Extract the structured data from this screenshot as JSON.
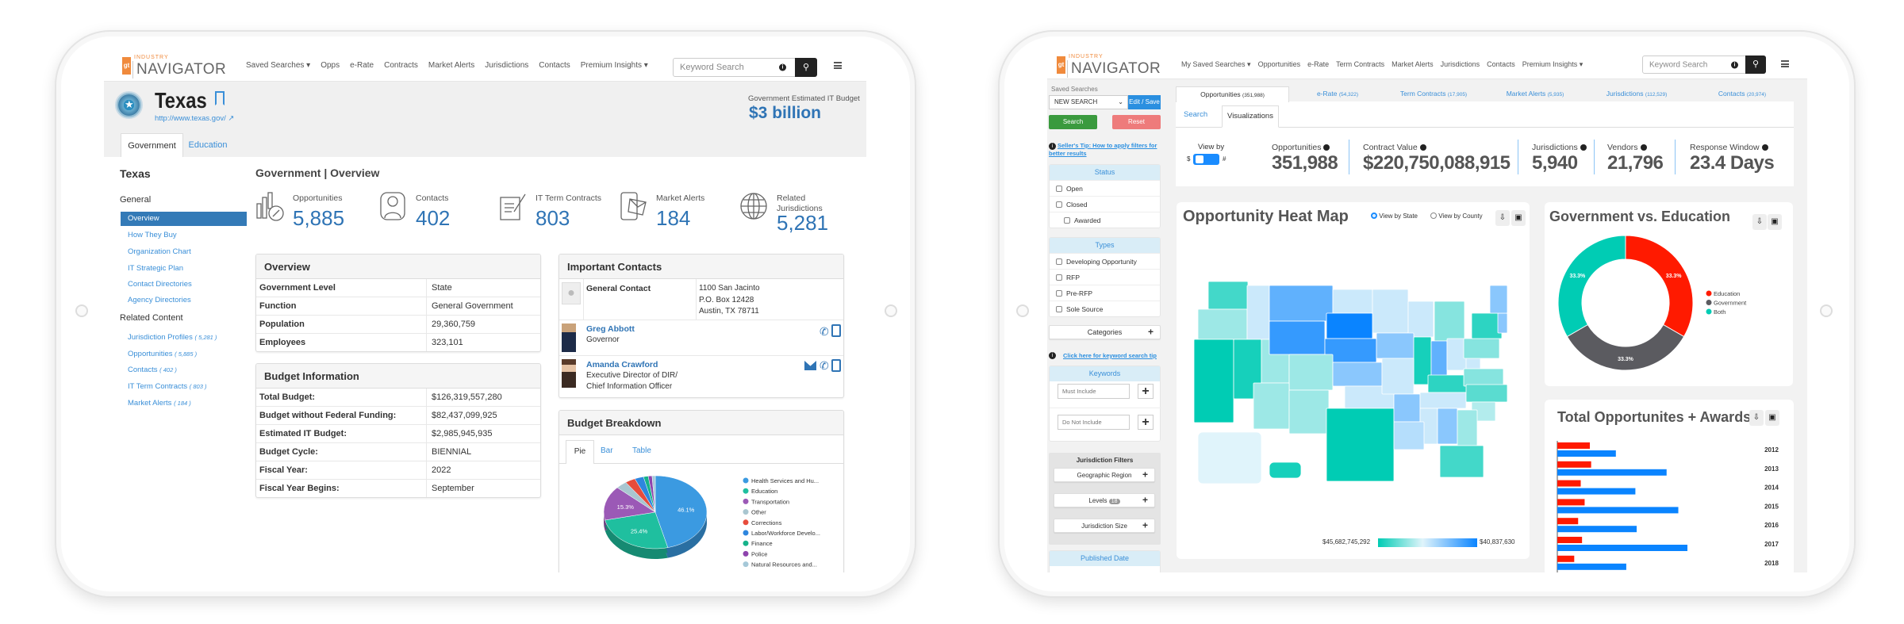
{
  "left": {
    "nav": {
      "logo_mark": "gt",
      "logo_top": "INDUSTRY",
      "logo_main": "NAVIGATOR",
      "items": [
        "Saved Searches ▾",
        "Opps",
        "e-Rate",
        "Contracts",
        "Market Alerts",
        "Jurisdictions",
        "Contacts",
        "Premium Insights ▾"
      ],
      "search_placeholder": "Keyword Search"
    },
    "header": {
      "title": "Texas",
      "url": "http://www.texas.gov/",
      "budget_label": "Government Estimated IT Budget",
      "budget_value": "$3 billion"
    },
    "tabs": [
      "Government",
      "Education"
    ],
    "sidebar": {
      "title": "Texas",
      "general_label": "General",
      "general": [
        "Overview",
        "How They Buy",
        "Organization Chart",
        "IT Strategic Plan",
        "Contact Directories",
        "Agency Directories"
      ],
      "related_label": "Related Content",
      "related": [
        {
          "label": "Jurisdiction Profiles",
          "count": "( 5,281 )"
        },
        {
          "label": "Opportunities",
          "count": "( 5,885 )"
        },
        {
          "label": "Contacts",
          "count": "( 402 )"
        },
        {
          "label": "IT Term Contracts",
          "count": "( 803 )"
        },
        {
          "label": "Market Alerts",
          "count": "( 184 )"
        }
      ]
    },
    "main": {
      "title": "Government | Overview",
      "stats": [
        {
          "label": "Opportunities",
          "value": "5,885",
          "icon": "bar-chart-clock-icon"
        },
        {
          "label": "Contacts",
          "value": "402",
          "icon": "person-icon"
        },
        {
          "label": "IT Term Contracts",
          "value": "803",
          "icon": "contract-pen-icon"
        },
        {
          "label": "Market Alerts",
          "value": "184",
          "icon": "phone-mail-icon"
        },
        {
          "label": "Related Jurisdictions",
          "value": "5,281",
          "icon": "globe-icon"
        }
      ],
      "overview": {
        "title": "Overview",
        "rows": [
          [
            "Government Level",
            "State"
          ],
          [
            "Function",
            "General Government"
          ],
          [
            "Population",
            "29,360,759"
          ],
          [
            "Employees",
            "323,101"
          ]
        ]
      },
      "budget": {
        "title": "Budget Information",
        "rows": [
          [
            "Total Budget:",
            "$126,319,557,280"
          ],
          [
            "Budget without Federal Funding:",
            "$82,437,099,925"
          ],
          [
            "Estimated IT Budget:",
            "$2,985,945,935"
          ],
          [
            "Budget Cycle:",
            "BIENNIAL"
          ],
          [
            "Fiscal Year:",
            "2022"
          ],
          [
            "Fiscal Year Begins:",
            "September"
          ]
        ]
      },
      "contacts": {
        "title": "Important Contacts",
        "general_label": "General Contact",
        "address": [
          "1100 San Jacinto",
          "P.O. Box 12428",
          "Austin, TX 78711"
        ],
        "people": [
          {
            "name": "Greg Abbott",
            "title": "Governor",
            "title2": ""
          },
          {
            "name": "Amanda Crawford",
            "title": "Executive Director of DIR/",
            "title2": "Chief Information Officer"
          }
        ]
      },
      "breakdown": {
        "title": "Budget Breakdown",
        "tabs": [
          "Pie",
          "Bar",
          "Table"
        ]
      }
    }
  },
  "right": {
    "nav": {
      "logo_mark": "gt",
      "logo_top": "INDUSTRY",
      "logo_main": "NAVIGATOR",
      "items": [
        "My Saved Searches ▾",
        "Opportunities",
        "e-Rate",
        "Term Contracts",
        "Market Alerts",
        "Jurisdictions",
        "Contacts",
        "Premium Insights ▾"
      ],
      "search_placeholder": "Keyword Search"
    },
    "sidebar": {
      "saved_label": "Saved Searches",
      "saved_value": "NEW SEARCH",
      "edit_save": "Edit / Save",
      "search": "Search",
      "reset": "Reset",
      "tip": "Seller's Tip: How to apply filters for better results",
      "status": {
        "title": "Status",
        "items": [
          "Open",
          "Closed",
          "Awarded"
        ]
      },
      "types": {
        "title": "Types",
        "items": [
          "Developing Opportunity",
          "RFP",
          "Pre-RFP",
          "Sole Source"
        ]
      },
      "categories": "Categories",
      "keyword_tip": "Click here for keyword search tip",
      "keywords": {
        "title": "Keywords",
        "must_placeholder": "Must Include",
        "not_placeholder": "Do Not Include"
      },
      "jurisdiction": {
        "title": "Jurisdiction Filters",
        "geo": "Geographic Region",
        "levels": "Levels",
        "levels_badge": "18",
        "size": "Jurisdiction Size"
      },
      "published": "Published Date"
    },
    "tabs": [
      {
        "label": "Opportunities",
        "count": "(351,988)"
      },
      {
        "label": "e-Rate",
        "count": "(54,322)"
      },
      {
        "label": "Term Contracts",
        "count": "(17,905)"
      },
      {
        "label": "Market Alerts",
        "count": "(5,935)"
      },
      {
        "label": "Jurisdictions",
        "count": "(112,529)"
      },
      {
        "label": "Contacts",
        "count": "(20,974)"
      }
    ],
    "subtabs": [
      "Search",
      "Visualizations"
    ],
    "view_by": {
      "label": "View by",
      "left": "$",
      "right": "#"
    },
    "stats": [
      {
        "label": "Opportunities",
        "value": "351,988"
      },
      {
        "label": "Contract Value",
        "value": "$220,750,088,915"
      },
      {
        "label": "Jurisdictions",
        "value": "5,940"
      },
      {
        "label": "Vendors",
        "value": "21,796"
      },
      {
        "label": "Response Window",
        "value": "23.4 Days"
      }
    ],
    "heatmap": {
      "title": "Opportunity Heat Map",
      "radio_state": "View by State",
      "radio_county": "View by County",
      "legend_min": "$45,682,745,292",
      "legend_max": "$40,837,630"
    },
    "donut": {
      "title": "Government vs. Education"
    },
    "bars": {
      "title": "Total Opportunites + Awards"
    }
  },
  "colors": {
    "brand_orange": "#f08a3c",
    "link_blue": "#3a8fd8",
    "stat_blue": "#2f74b5",
    "search_green": "#3a9a3e",
    "reset_red": "#ee7b7b"
  },
  "chart_data": [
    {
      "type": "pie",
      "title": "Budget Breakdown",
      "categories": [
        "Health Services and Hu...",
        "Education",
        "Transportation",
        "Other",
        "Corrections",
        "Labor/Workforce Develo...",
        "Finance",
        "Police",
        "Natural Resources and..."
      ],
      "values": [
        46.1,
        25.4,
        15.3,
        3.5,
        3.2,
        2.8,
        1.5,
        1.2,
        1.0
      ],
      "data_labels": [
        "46.1%",
        "25.4%",
        "15.3%",
        "",
        "",
        "",
        "",
        "",
        ""
      ],
      "colors": [
        "#3b9ae1",
        "#1fbf9f",
        "#9b59b6",
        "#a9c6d0",
        "#e74c3c",
        "#2e86de",
        "#16b38a",
        "#8e44ad",
        "#a5c8d8"
      ],
      "legend": "right"
    },
    {
      "type": "pie",
      "title": "Government vs. Education",
      "categories": [
        "Education",
        "Government",
        "Both"
      ],
      "values": [
        33.3,
        33.3,
        33.3
      ],
      "data_labels": [
        "33.3%",
        "33.3%",
        "33.3%"
      ],
      "colors": [
        "#ff1a00",
        "#5b5b60",
        "#00ccb4"
      ],
      "legend": "right"
    },
    {
      "type": "bar",
      "orientation": "horizontal",
      "title": "Total Opportunites + Awards",
      "categories": [
        "2012",
        "2013",
        "2014",
        "2015",
        "2016",
        "2017",
        "2018"
      ],
      "series": [
        {
          "values": [
            25,
            26,
            18,
            21,
            16,
            19,
            13
          ],
          "color": "#ff1a00"
        },
        {
          "values": [
            45,
            84,
            60,
            93,
            61,
            100,
            53
          ],
          "color": "#0a84ff"
        }
      ]
    },
    {
      "type": "heatmap",
      "title": "Opportunity Heat Map",
      "legend_min": "$45,682,745,292",
      "legend_max": "$40,837,630",
      "scale_colors": [
        "#00ccb4",
        "#e0f4fb",
        "#0a84ff"
      ],
      "regions": {
        "WA": 0.15,
        "OR": 0.35,
        "CA": 0.0,
        "NV": 0.05,
        "ID": 0.55,
        "MT": 0.8,
        "WY": 0.9,
        "UT": 0.35,
        "CO": 0.35,
        "AZ": 0.35,
        "NM": 0.35,
        "ND": 0.55,
        "SD": 1.0,
        "NE": 0.9,
        "KS": 0.7,
        "OK": 0.55,
        "TX": 0.0,
        "MN": 0.55,
        "IA": 0.7,
        "MO": 0.55,
        "AR": 0.7,
        "LA": 0.6,
        "WI": 0.55,
        "IL": 0.05,
        "MI": 0.3,
        "IN": 0.8,
        "OH": 0.55,
        "KY": 0.1,
        "TN": 0.55,
        "MS": 0.55,
        "AL": 0.7,
        "GA": 0.35,
        "FL": 0.15,
        "SC": 0.4,
        "NC": 0.2,
        "VA": 0.3,
        "WV": 0.55,
        "PA": 0.3,
        "NY": 0.1,
        "NE-US": 0.7,
        "ME": 0.7,
        "AK": 0.5,
        "HI": 0.05
      }
    }
  ]
}
